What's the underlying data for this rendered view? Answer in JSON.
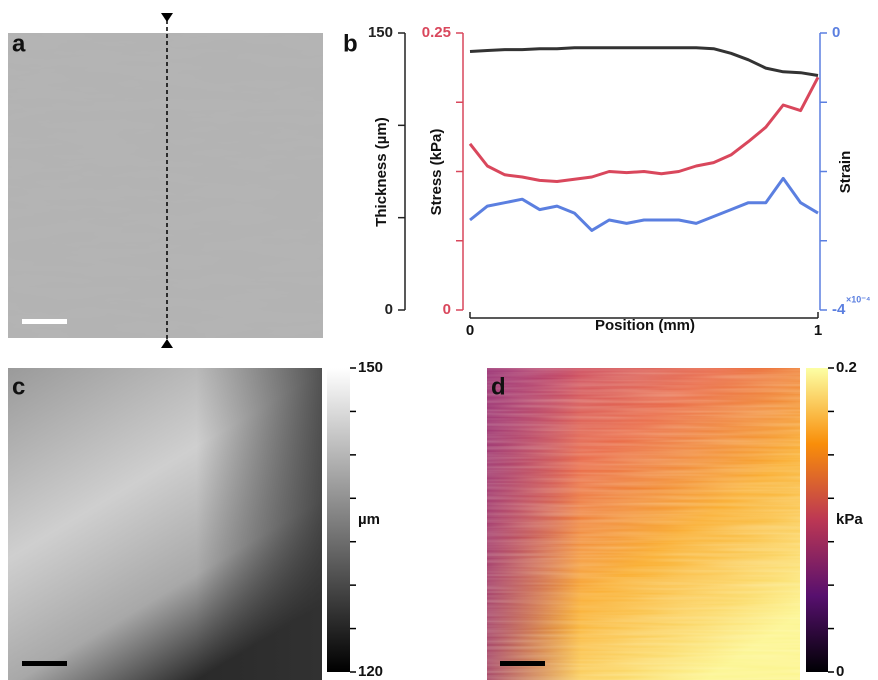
{
  "panel_labels": [
    "a",
    "b",
    "c",
    "d"
  ],
  "chart_data": {
    "type": "line",
    "xlabel": "Position (mm)",
    "ylabel": "Thickness (µm)",
    "y2label": "Stress (kPa)",
    "y3label": "Strain",
    "y3_multiplier": "×10⁻⁴",
    "x": [
      0,
      0.05,
      0.1,
      0.15,
      0.2,
      0.25,
      0.3,
      0.35,
      0.4,
      0.45,
      0.5,
      0.55,
      0.6,
      0.65,
      0.7,
      0.75,
      0.8,
      0.85,
      0.9,
      0.95,
      1
    ],
    "xlim": [
      0,
      1
    ],
    "xticks": [
      0,
      1
    ],
    "ylim": [
      0,
      150
    ],
    "yticks": [
      0,
      150
    ],
    "yminorticks": [
      50,
      100
    ],
    "y2lim": [
      0,
      0.25
    ],
    "y2ticks": [
      0,
      0.25
    ],
    "y2minorticks": [
      0.0625,
      0.125,
      0.1875
    ],
    "y3lim": [
      -4,
      0
    ],
    "y3ticks": [
      -4,
      0
    ],
    "y3minorticks": [
      -3,
      -2,
      -1
    ],
    "series": [
      {
        "color": "#333333",
        "axis": "y",
        "values": [
          140,
          140.5,
          141,
          141,
          141.5,
          141.5,
          142,
          142,
          142,
          142,
          142,
          142,
          142,
          142,
          141.5,
          139,
          135.5,
          131,
          129,
          128.5,
          127
        ]
      },
      {
        "color": "#d9475c",
        "axis": "y2",
        "values": [
          0.15,
          0.13,
          0.122,
          0.12,
          0.117,
          0.116,
          0.118,
          0.12,
          0.125,
          0.124,
          0.125,
          0.123,
          0.125,
          0.13,
          0.133,
          0.14,
          0.152,
          0.165,
          0.185,
          0.18,
          0.21
        ]
      },
      {
        "color": "#5b7fe0",
        "axis": "y3",
        "values": [
          -2.7,
          -2.5,
          -2.45,
          -2.4,
          -2.55,
          -2.5,
          -2.6,
          -2.85,
          -2.7,
          -2.75,
          -2.7,
          -2.7,
          -2.7,
          -2.75,
          -2.65,
          -2.55,
          -2.45,
          -2.45,
          -2.1,
          -2.45,
          -2.6
        ]
      }
    ]
  },
  "colorbars": [
    {
      "lim": [
        120,
        150
      ],
      "ticks": [
        120,
        150
      ],
      "label": "µm"
    },
    {
      "lim": [
        0,
        0.2
      ],
      "ticks": [
        0,
        0.2
      ],
      "label": "kPa"
    }
  ]
}
